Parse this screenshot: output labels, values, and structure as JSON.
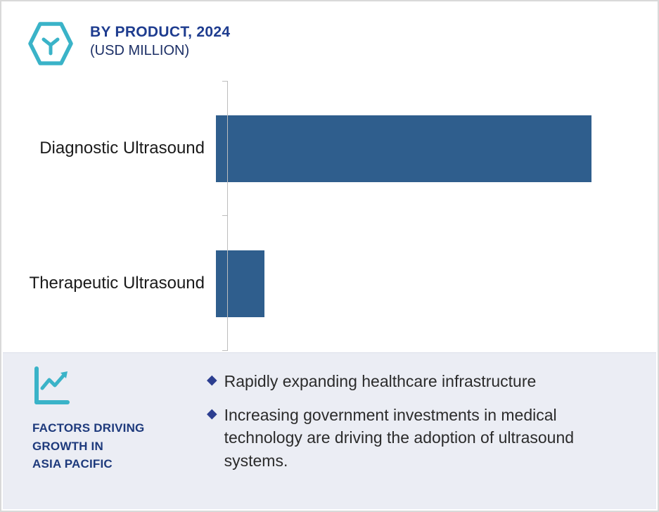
{
  "chart_data": {
    "type": "bar",
    "orientation": "horizontal",
    "title": "BY PRODUCT, 2024",
    "subtitle": "(USD MILLION)",
    "categories": [
      "Diagnostic Ultrasound",
      "Therapeutic Ultrasound"
    ],
    "values": [
      100,
      13
    ],
    "xlim": [
      0,
      112
    ],
    "grid": false,
    "legend": false,
    "bar_color": "#2f5e8d"
  },
  "footer": {
    "heading": "FACTORS DRIVING\nGROWTH IN\nASIA PACIFIC",
    "bullets": [
      "Rapidly expanding healthcare infrastructure",
      "Increasing government investments in medical technology are driving the adoption of ultrasound systems."
    ],
    "bullet_marker": "◆"
  },
  "colors": {
    "bar": "#2f5e8d",
    "title_navy": "#1e3c8f",
    "accent_teal": "#3ab3c8",
    "footer_bg": "#ebedf4",
    "diamond_blue": "#2c3e90"
  }
}
